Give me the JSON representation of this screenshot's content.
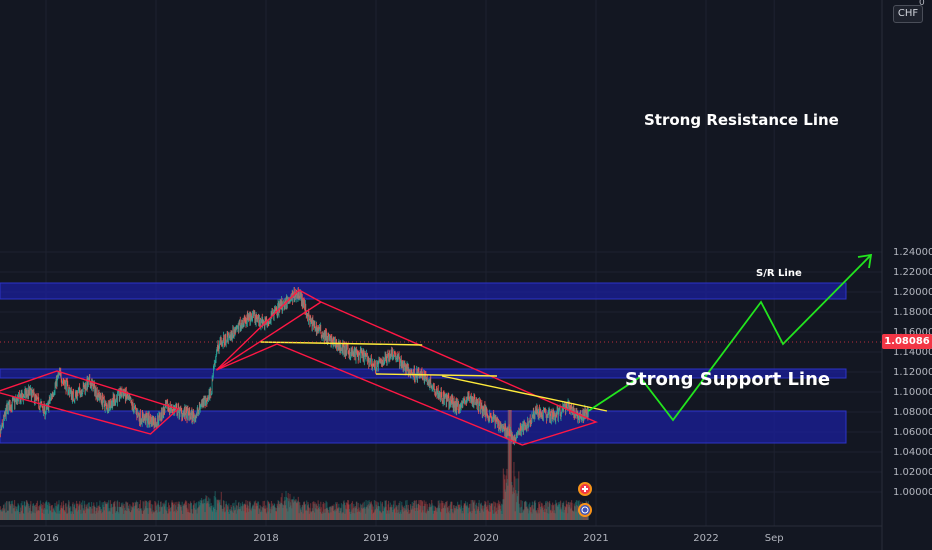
{
  "currency": "CHF",
  "scale_corner": "0",
  "current_price": "1.08086",
  "colors": {
    "background": "#131722",
    "up": "#26a69a",
    "down": "#ef5350",
    "zone": "#1b1f9c",
    "channel": "#ff1744",
    "trend": "#ffeb3b",
    "projection": "#22e51e"
  },
  "annotations": {
    "resistance": "Strong Resistance Line",
    "sr": "S/R Line",
    "support": "Strong Support Line"
  },
  "event_icons": [
    "plus-event-icon",
    "globe-event-icon"
  ],
  "chart_data": {
    "type": "candlestick",
    "symbol_currency": "CHF",
    "x_ticks": [
      "2016",
      "2017",
      "2018",
      "2019",
      "2020",
      "2021",
      "2022",
      "Sep"
    ],
    "y_ticks": [
      "1.24000",
      "1.22000",
      "1.20000",
      "1.18000",
      "1.16000",
      "1.14000",
      "1.12000",
      "1.10000",
      "1.08000",
      "1.06000",
      "1.04000",
      "1.02000",
      "1.00000"
    ],
    "ylim": [
      0.985,
      1.26
    ],
    "last_price": 1.08086,
    "zones": [
      {
        "label": "Strong Resistance Line",
        "from": 1.193,
        "to": 1.209
      },
      {
        "label": "S/R Line",
        "from": 1.114,
        "to": 1.123
      },
      {
        "label": "Strong Support Line",
        "from": 1.049,
        "to": 1.081
      }
    ],
    "price_path": [
      [
        2015.55,
        1.045
      ],
      [
        2015.65,
        1.085
      ],
      [
        2015.85,
        1.1
      ],
      [
        2016.0,
        1.08
      ],
      [
        2016.12,
        1.118
      ],
      [
        2016.25,
        1.095
      ],
      [
        2016.4,
        1.11
      ],
      [
        2016.55,
        1.085
      ],
      [
        2016.7,
        1.1
      ],
      [
        2016.85,
        1.075
      ],
      [
        2017.0,
        1.07
      ],
      [
        2017.1,
        1.085
      ],
      [
        2017.35,
        1.075
      ],
      [
        2017.5,
        1.1
      ],
      [
        2017.55,
        1.145
      ],
      [
        2017.7,
        1.16
      ],
      [
        2017.85,
        1.175
      ],
      [
        2018.0,
        1.17
      ],
      [
        2018.12,
        1.185
      ],
      [
        2018.3,
        1.2
      ],
      [
        2018.4,
        1.17
      ],
      [
        2018.5,
        1.16
      ],
      [
        2018.6,
        1.15
      ],
      [
        2018.75,
        1.14
      ],
      [
        2018.9,
        1.135
      ],
      [
        2019.0,
        1.125
      ],
      [
        2019.15,
        1.14
      ],
      [
        2019.3,
        1.12
      ],
      [
        2019.45,
        1.115
      ],
      [
        2019.6,
        1.095
      ],
      [
        2019.75,
        1.085
      ],
      [
        2019.85,
        1.095
      ],
      [
        2019.95,
        1.085
      ],
      [
        2020.1,
        1.07
      ],
      [
        2020.25,
        1.055
      ],
      [
        2020.35,
        1.065
      ],
      [
        2020.45,
        1.08
      ],
      [
        2020.6,
        1.075
      ],
      [
        2020.75,
        1.085
      ],
      [
        2020.85,
        1.075
      ],
      [
        2020.93,
        1.081
      ]
    ],
    "projection": [
      [
        2020.93,
        1.081
      ],
      [
        2021.4,
        1.115
      ],
      [
        2021.7,
        1.072
      ],
      [
        2022.5,
        1.19
      ],
      [
        2022.7,
        1.148
      ],
      [
        2023.5,
        1.237
      ]
    ],
    "channels": [
      {
        "name": "channel-2016",
        "points": [
          [
            2015.55,
            1.1
          ],
          [
            2016.1,
            1.121
          ],
          [
            2017.2,
            1.083
          ],
          [
            2016.95,
            1.058
          ]
        ]
      },
      {
        "name": "channel-2018-2020",
        "points": [
          [
            2017.55,
            1.122
          ],
          [
            2018.3,
            1.202
          ],
          [
            2018.5,
            1.19
          ],
          [
            2021.0,
            1.07
          ],
          [
            2020.33,
            1.047
          ],
          [
            2018.1,
            1.148
          ]
        ]
      }
    ],
    "trendlines": [
      {
        "from": [
          2017.95,
          1.15
        ],
        "to": [
          2019.42,
          1.147
        ]
      },
      {
        "from": [
          2019.0,
          1.118
        ],
        "to": [
          2020.1,
          1.116
        ]
      },
      {
        "from": [
          2019.6,
          1.116
        ],
        "to": [
          2021.1,
          1.081
        ]
      }
    ]
  }
}
